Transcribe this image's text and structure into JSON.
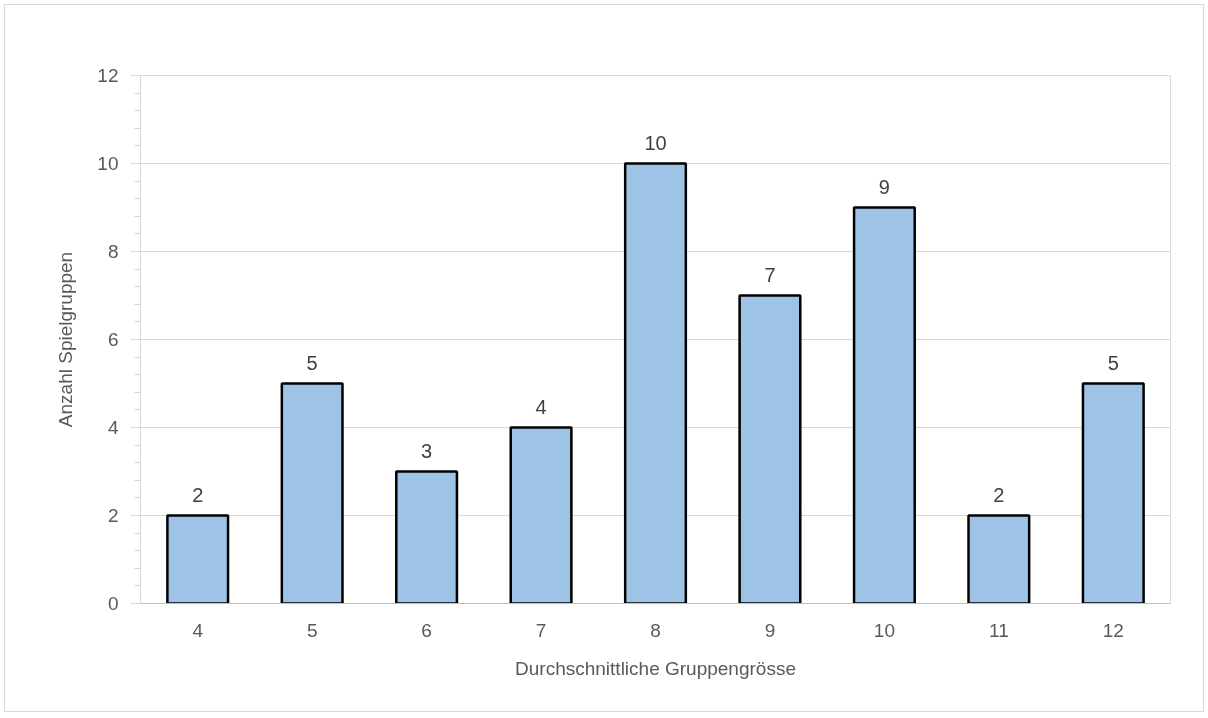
{
  "chart_data": {
    "type": "bar",
    "xlabel": "Durchschnittliche Gruppengrösse",
    "ylabel": "Anzahl Spielgruppen",
    "categories": [
      "4",
      "5",
      "6",
      "7",
      "8",
      "9",
      "10",
      "11",
      "12"
    ],
    "values": [
      2,
      5,
      3,
      4,
      10,
      7,
      9,
      2,
      5
    ],
    "color": "#9dc3e6",
    "ylim": [
      0,
      12
    ],
    "yticks": [
      0,
      {
        "value": 0.4,
        "label": null
      },
      {
        "value": 0.8,
        "label": null
      },
      {
        "value": 1.2,
        "label": null
      },
      {
        "value": 1.6,
        "label": null
      },
      2,
      {
        "value": 2.4,
        "label": null
      },
      {
        "value": 2.8,
        "label": null
      },
      {
        "value": 3.2,
        "label": null
      },
      {
        "value": 3.6,
        "label": null
      },
      4,
      {
        "value": 4.4,
        "label": null
      },
      {
        "value": 4.8,
        "label": null
      },
      {
        "value": 5.2,
        "label": null
      },
      {
        "value": 5.6,
        "label": null
      },
      6,
      {
        "value": 6.4,
        "label": null
      },
      {
        "value": 6.8,
        "label": null
      },
      {
        "value": 7.2,
        "label": null
      },
      {
        "value": 7.6,
        "label": null
      },
      8,
      {
        "value": 8.4,
        "label": null
      },
      {
        "value": 8.8,
        "label": null
      },
      {
        "value": 9.2,
        "label": null
      },
      {
        "value": 9.6,
        "label": null
      },
      10,
      {
        "value": 10.4,
        "label": null
      },
      {
        "value": 10.8,
        "label": null
      },
      {
        "value": 11.2,
        "label": null
      },
      {
        "value": 11.6,
        "label": null
      },
      12
    ],
    "grid": "y",
    "data_labels": true
  }
}
